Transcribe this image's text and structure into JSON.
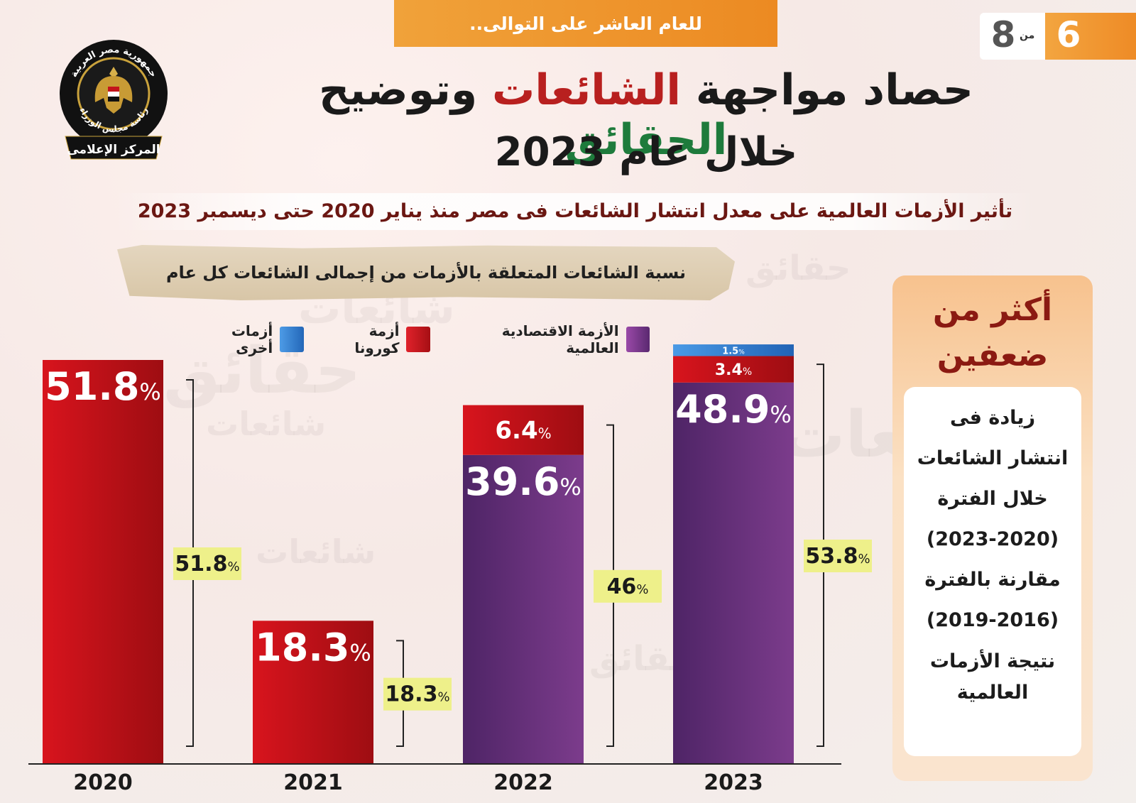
{
  "header": {
    "tagline": "للعام العاشر على التوالى..",
    "page_current": "6",
    "page_of": "من",
    "page_total": "8"
  },
  "logo": {
    "arc_top": "جمهورية مصر العربية",
    "arc_bottom": "رئاسة مجلس الوزراء",
    "ribbon": "المركز الإعلامى"
  },
  "title": {
    "part1": "حصاد مواجهة",
    "highlight1": "الشائعات",
    "part2": "وتوضيح",
    "highlight2": "الحقائق",
    "line2": "خلال عام 2023"
  },
  "subtitle": "تأثير الأزمات العالمية على معدل انتشار الشائعات فى مصر منذ يناير 2020  حتى ديسمبر 2023",
  "chart_title": "نسبة الشائعات المتعلقة بالأزمات من إجمالى الشائعات كل عام",
  "legend": [
    {
      "label": "الأزمة الاقتصادية العالمية",
      "color": "#7b3b8a"
    },
    {
      "label": "أزمة كورونا",
      "color": "#c4141b"
    },
    {
      "label": "أزمات أخرى",
      "color": "#2f7fd1"
    }
  ],
  "side_panel": {
    "headline_1": "أكثر من",
    "headline_2": "ضعفين",
    "body_1": "زيادة فى",
    "body_2": "انتشار الشائعات",
    "body_3": "خلال الفترة",
    "body_4": "(2023-2020)",
    "body_5": "مقارنة بالفترة",
    "body_6": "(2019-2016)",
    "body_7": "نتيجة الأزمات",
    "body_8": "العالمية"
  },
  "chart_data": {
    "type": "bar",
    "stacked": true,
    "title": "نسبة الشائعات المتعلقة بالأزمات من إجمالى الشائعات كل عام",
    "categories": [
      "2020",
      "2021",
      "2022",
      "2023"
    ],
    "series": [
      {
        "name": "الأزمة الاقتصادية العالمية",
        "color": "#6e3282",
        "values": [
          0,
          0,
          39.6,
          48.9
        ]
      },
      {
        "name": "أزمة كورونا",
        "color": "#c4141b",
        "values": [
          51.8,
          18.3,
          6.4,
          3.4
        ]
      },
      {
        "name": "أزمات أخرى",
        "color": "#2f7fd1",
        "values": [
          0,
          0,
          0,
          1.5
        ]
      }
    ],
    "totals": [
      51.8,
      18.3,
      46,
      53.8
    ],
    "total_labels": [
      "51.8",
      "18.3",
      "46",
      "53.8"
    ],
    "unit": "%",
    "ylim": [
      0,
      55
    ]
  }
}
